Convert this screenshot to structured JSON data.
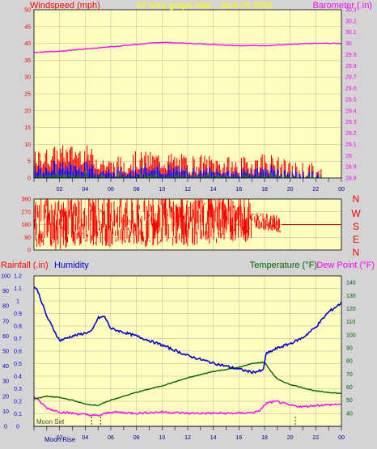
{
  "colors": {
    "background": "#d4d4d4",
    "plot_bg": "#ffffc0",
    "wind_gust": "#ff0000",
    "wind_avg": "#0000ff",
    "wind_min": "#008000",
    "barometer": "#ff00ff",
    "direction": "#ff0000",
    "humidity": "#0000d0",
    "temperature": "#006400",
    "dew_point": "#ff00ff",
    "rainfall": "#0000ff",
    "grid": "#a0a0a0"
  },
  "header": {
    "title": "24 hour graph date : June 05 2022",
    "left_label": "Windspeed (mph)",
    "right_label": "Barometer (.in)"
  },
  "direction_labels": [
    "N",
    "W",
    "S",
    "E",
    "N"
  ],
  "bottom_labels": {
    "rainfall": "Rainfall (.in)",
    "humidity": "Humidity",
    "temperature": "Temperature (°F)",
    "dew_point": "Dew Point (°F)"
  },
  "moon_labels": {
    "rise": "Moon Rise",
    "set": "Moon Set"
  },
  "chart_data": [
    {
      "type": "line",
      "title": "24 hour graph date : June 05 2022",
      "x_ticks": [
        "02",
        "04",
        "06",
        "08",
        "10",
        "12",
        "14",
        "16",
        "18",
        "20",
        "22",
        "00"
      ],
      "y_left": {
        "label": "Windspeed (mph)",
        "ylim": [
          0,
          50
        ],
        "ticks": [
          0,
          5,
          10,
          15,
          20,
          25,
          30,
          35,
          40,
          45,
          50
        ]
      },
      "y_right": {
        "label": "Barometer (.in)",
        "ylim": [
          28.8,
          30.3
        ],
        "ticks": [
          "28.8",
          "28.9",
          "29",
          "29.1",
          "29.2",
          "29.3",
          "29.4",
          "29.5",
          "29.6",
          "29.7",
          "29.8",
          "29.9",
          "30",
          "30.1",
          "30.2",
          "30.3"
        ]
      },
      "series": [
        {
          "name": "Barometer (.in)",
          "axis": "right",
          "x": [
            0,
            2,
            4,
            6,
            8,
            10,
            12,
            14,
            16,
            18,
            20,
            22,
            24
          ],
          "values": [
            29.92,
            29.93,
            29.95,
            29.97,
            29.99,
            30.01,
            30.0,
            29.99,
            29.98,
            29.98,
            29.99,
            30.0,
            30.0
          ]
        },
        {
          "name": "Windspeed (mph)",
          "axis": "left",
          "x": [
            0,
            2,
            4,
            6,
            8,
            10,
            12,
            14,
            16,
            18,
            20,
            21.5,
            22.5,
            24
          ],
          "values": [
            5,
            7,
            7,
            3,
            5,
            5,
            4,
            4,
            3,
            5,
            2,
            2,
            0,
            0
          ]
        }
      ],
      "grid": true
    },
    {
      "type": "line",
      "y_left": {
        "ylim": [
          0,
          360
        ],
        "ticks": [
          0,
          90,
          180,
          270,
          360
        ]
      },
      "series": [
        {
          "name": "Wind Direction",
          "x": [
            0,
            2,
            4,
            6,
            8,
            10,
            12,
            14,
            16,
            18,
            19.3,
            24
          ],
          "values": [
            200,
            180,
            220,
            200,
            180,
            220,
            200,
            230,
            240,
            200,
            180,
            180
          ]
        }
      ],
      "grid": true
    },
    {
      "type": "line",
      "y_left_outer": {
        "label": "Rainfall (.in)",
        "ylim": [
          0,
          1.2
        ],
        "ticks": [
          "0",
          "0.1",
          "0.2",
          "0.3",
          "0.4",
          "0.5",
          "0.6",
          "0.7",
          "0.8",
          "0.9",
          "1",
          "1.1",
          "1.2"
        ]
      },
      "y_left_inner": {
        "label": "Humidity",
        "ylim": [
          0,
          100
        ],
        "ticks": [
          0,
          10,
          20,
          30,
          40,
          50,
          60,
          70,
          80,
          90,
          100
        ]
      },
      "y_right": {
        "label": "Temperature (°F)  Dew Point (°F)",
        "ylim": [
          30,
          145
        ],
        "ticks": [
          40,
          50,
          60,
          70,
          80,
          90,
          100,
          110,
          120,
          130,
          140
        ]
      },
      "series": [
        {
          "name": "Humidity",
          "axis": "inner",
          "x": [
            0,
            0.3,
            1,
            2,
            3,
            4,
            4.5,
            5,
            5.5,
            6,
            8,
            10,
            12,
            14,
            16,
            17,
            17.9,
            18.1,
            19,
            20,
            21,
            22,
            23,
            24
          ],
          "values": [
            93,
            90,
            73,
            57,
            60,
            62,
            63,
            72,
            73,
            65,
            60,
            54,
            47,
            42,
            38,
            36,
            37,
            48,
            52,
            55,
            59,
            66,
            76,
            82
          ]
        },
        {
          "name": "Temperature (°F)",
          "axis": "right",
          "x": [
            0,
            1,
            2,
            3,
            4,
            5,
            6,
            8,
            10,
            12,
            14,
            16,
            17,
            18,
            18.5,
            19,
            20,
            22,
            24
          ],
          "values": [
            51,
            53,
            52,
            50,
            47,
            46,
            50,
            56,
            61,
            67,
            72,
            75,
            78,
            79,
            72,
            66,
            62,
            57,
            55
          ]
        },
        {
          "name": "Dew Point (°F)",
          "axis": "right",
          "x": [
            0,
            1,
            2,
            3,
            4,
            5,
            6,
            8,
            10,
            12,
            14,
            16,
            17.5,
            18.2,
            19,
            20,
            21,
            22,
            24
          ],
          "values": [
            53,
            44,
            41,
            40,
            39,
            38,
            41,
            40,
            41,
            40,
            40,
            40,
            41,
            48,
            49,
            46,
            45,
            46,
            47
          ]
        },
        {
          "name": "Rainfall (.in)",
          "axis": "outer",
          "x": [
            0,
            24
          ],
          "values": [
            0,
            0
          ]
        }
      ],
      "grid": true
    }
  ]
}
